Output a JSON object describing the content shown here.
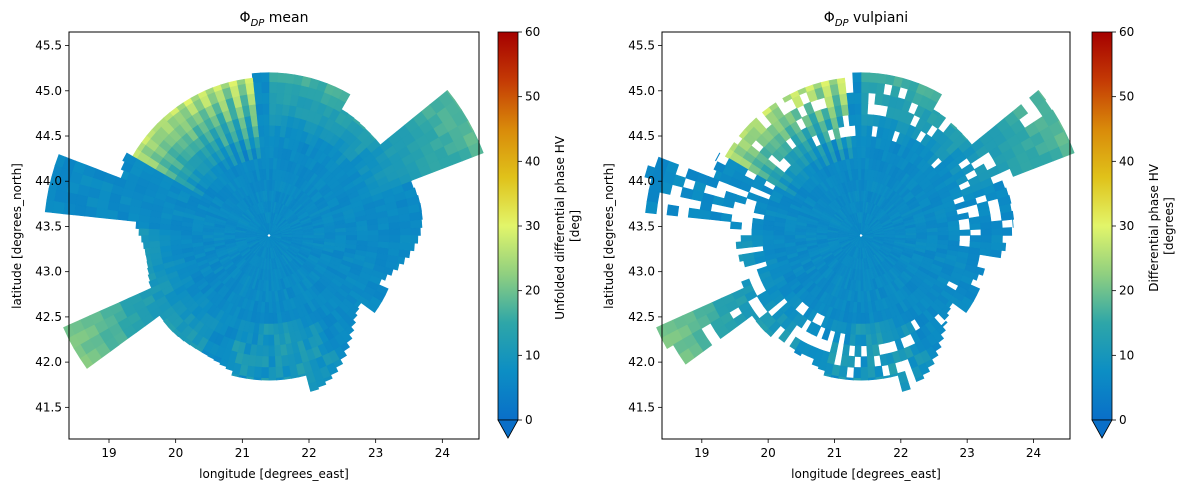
{
  "chart_data": [
    {
      "type": "heatmap",
      "title_symbol": "Φ",
      "title_subscript": "DP",
      "title_rest": " mean",
      "xlabel": "longitude [degrees_east]",
      "ylabel": "latitude [degrees_north]",
      "xlim": [
        18.4,
        24.55
      ],
      "ylim": [
        41.15,
        45.65
      ],
      "xticks": [
        19,
        20,
        21,
        22,
        23,
        24
      ],
      "yticks": [
        41.5,
        42.0,
        42.5,
        43.0,
        43.5,
        44.0,
        44.5,
        45.0,
        45.5
      ],
      "colorbar": {
        "label_lines": [
          "Unfolded differential phase HV",
          "[deg]"
        ],
        "range": [
          0,
          60
        ],
        "ticks": [
          0,
          10,
          20,
          30,
          40,
          50,
          60
        ],
        "extend": "both"
      },
      "radar_center": [
        21.4,
        43.4
      ],
      "variant": "mean"
    },
    {
      "type": "heatmap",
      "title_symbol": "Φ",
      "title_subscript": "DP",
      "title_rest": " vulpiani",
      "xlabel": "longitude [degrees_east]",
      "ylabel": "latitude [degrees_north]",
      "xlim": [
        18.4,
        24.55
      ],
      "ylim": [
        41.15,
        45.65
      ],
      "xticks": [
        19,
        20,
        21,
        22,
        23,
        24
      ],
      "yticks": [
        41.5,
        42.0,
        42.5,
        43.0,
        43.5,
        44.0,
        44.5,
        45.0,
        45.5
      ],
      "colorbar": {
        "label_lines": [
          "Differential phase HV",
          "[degrees]"
        ],
        "range": [
          0,
          60
        ],
        "ticks": [
          0,
          10,
          20,
          30,
          40,
          50,
          60
        ],
        "extend": "both"
      },
      "radar_center": [
        21.4,
        43.4
      ],
      "variant": "vulpiani"
    }
  ],
  "colormap": [
    "#0a6fc8",
    "#0c8ec4",
    "#2ea6a8",
    "#8fcf80",
    "#e2f56a",
    "#e0c21a",
    "#d98a0a",
    "#c43a05",
    "#a50000"
  ]
}
